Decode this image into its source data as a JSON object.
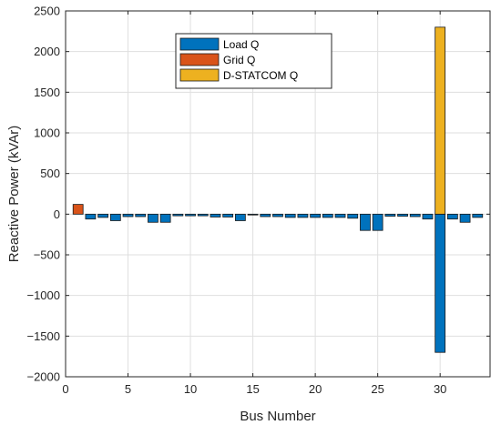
{
  "chart_data": {
    "type": "bar",
    "xlabel": "Bus Number",
    "ylabel": "Reactive Power (kVAr)",
    "xlim": [
      0,
      34
    ],
    "ylim": [
      -2000,
      2500
    ],
    "xticks": [
      0,
      5,
      10,
      15,
      20,
      25,
      30
    ],
    "yticks": [
      -2000,
      -1500,
      -1000,
      -500,
      0,
      500,
      1000,
      1500,
      2000,
      2500
    ],
    "grid": true,
    "legend_position": "top-center",
    "series": [
      {
        "name": "Load Q",
        "color": "#0072BD",
        "x": [
          2,
          3,
          4,
          5,
          6,
          7,
          8,
          9,
          10,
          11,
          12,
          13,
          14,
          15,
          16,
          17,
          18,
          19,
          20,
          21,
          22,
          23,
          24,
          25,
          26,
          27,
          28,
          29,
          30,
          31,
          32,
          33
        ],
        "values": [
          -60,
          -40,
          -80,
          -30,
          -30,
          -100,
          -100,
          -20,
          -20,
          -20,
          -35,
          -35,
          -80,
          -10,
          -30,
          -30,
          -40,
          -40,
          -40,
          -40,
          -40,
          -50,
          -200,
          -200,
          -25,
          -25,
          -30,
          -60,
          -1700,
          -60,
          -100,
          -40
        ]
      },
      {
        "name": "Grid Q",
        "color": "#D95319",
        "x": [
          1
        ],
        "values": [
          120
        ]
      },
      {
        "name": "D-STATCOM Q",
        "color": "#EDB120",
        "x": [
          30
        ],
        "values": [
          2300
        ]
      }
    ]
  }
}
